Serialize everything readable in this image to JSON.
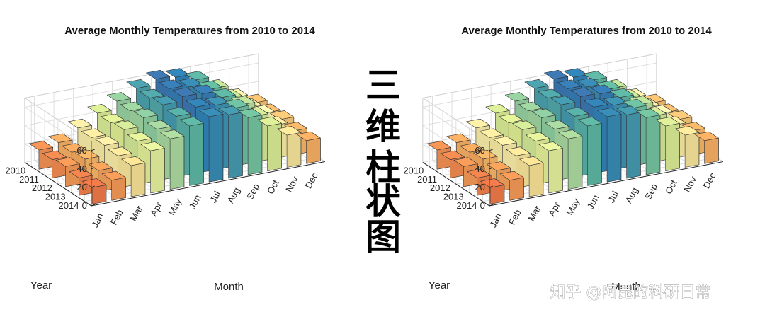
{
  "banner_text": [
    "三",
    "维",
    "柱",
    "状",
    "图"
  ],
  "watermark": "知乎 @阿昆的科研日常",
  "chart_data": [
    {
      "type": "bar3d",
      "title": "Average Monthly Temperatures from 2010 to 2014",
      "xlabel": "Month",
      "ylabel": "Year",
      "x": [
        "Jan",
        "Feb",
        "Mar",
        "Apr",
        "May",
        "Jun",
        "Jul",
        "Aug",
        "Sep",
        "Oct",
        "Nov",
        "Dec"
      ],
      "y": [
        "2010",
        "2011",
        "2012",
        "2013",
        "2014"
      ],
      "zticks": [
        0,
        20,
        40,
        60
      ],
      "zlim": [
        0,
        70
      ],
      "grid": true,
      "colormap": [
        "#9e0142",
        "#d53e4f",
        "#f46d43",
        "#fdae61",
        "#fee08b",
        "#ffffbf",
        "#e6f598",
        "#abdda4",
        "#66c2a5",
        "#3288bd",
        "#5e4fa2"
      ],
      "values": [
        [
          21,
          25,
          37,
          49,
          58,
          68,
          74,
          72,
          65,
          52,
          38,
          28
        ],
        [
          20,
          24,
          36,
          48,
          57,
          67,
          73,
          71,
          64,
          51,
          37,
          27
        ],
        [
          22,
          26,
          37,
          50,
          59,
          69,
          74,
          73,
          65,
          53,
          39,
          29
        ],
        [
          19,
          23,
          35,
          47,
          56,
          66,
          72,
          70,
          63,
          50,
          36,
          26
        ],
        [
          18,
          22,
          34,
          46,
          55,
          65,
          71,
          69,
          62,
          49,
          35,
          25
        ]
      ]
    },
    {
      "type": "bar3d",
      "title": "Average Monthly Temperatures from 2010 to 2014",
      "xlabel": "Month",
      "ylabel": "Year",
      "x": [
        "Jan",
        "Feb",
        "Mar",
        "Apr",
        "May",
        "Jun",
        "Jul",
        "Aug",
        "Sep",
        "Oct",
        "Nov",
        "Dec"
      ],
      "y": [
        "2010",
        "2011",
        "2012",
        "2013",
        "2014"
      ],
      "zticks": [
        0,
        20,
        40,
        60
      ],
      "zlim": [
        0,
        70
      ],
      "grid": true,
      "colormap": [
        "#9e0142",
        "#d53e4f",
        "#f46d43",
        "#fdae61",
        "#fee08b",
        "#ffffbf",
        "#e6f598",
        "#abdda4",
        "#66c2a5",
        "#3288bd",
        "#5e4fa2"
      ],
      "values": [
        [
          21,
          25,
          37,
          49,
          58,
          68,
          74,
          72,
          65,
          52,
          38,
          28
        ],
        [
          20,
          24,
          36,
          48,
          57,
          67,
          73,
          71,
          64,
          51,
          37,
          27
        ],
        [
          22,
          26,
          37,
          50,
          59,
          69,
          74,
          73,
          65,
          53,
          39,
          29
        ],
        [
          19,
          23,
          35,
          47,
          56,
          66,
          72,
          70,
          63,
          50,
          36,
          26
        ],
        [
          18,
          22,
          34,
          46,
          55,
          65,
          71,
          69,
          62,
          49,
          35,
          25
        ]
      ]
    }
  ]
}
